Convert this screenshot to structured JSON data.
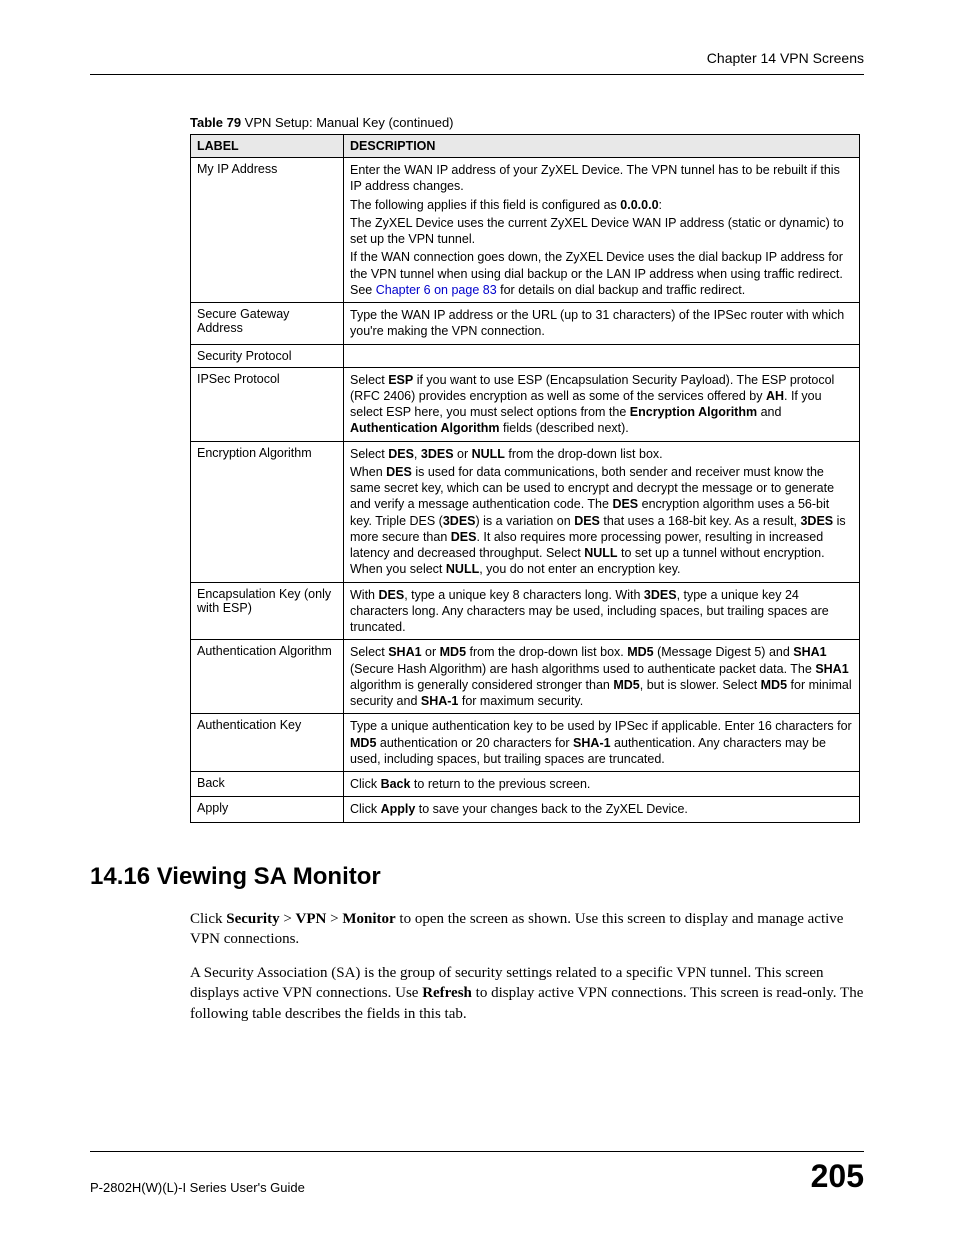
{
  "header": {
    "chapter": "Chapter 14 VPN Screens"
  },
  "table_caption": {
    "prefix": "Table 79",
    "rest": "   VPN Setup: Manual Key (continued)"
  },
  "table": {
    "headers": {
      "label": "LABEL",
      "description": "DESCRIPTION"
    },
    "rows": {
      "myip": {
        "label": "My IP Address",
        "p1": "Enter the WAN IP address of your ZyXEL Device. The VPN tunnel has to be rebuilt if this IP address changes.",
        "p2a": "The following applies if this field is configured as ",
        "p2b": "0.0.0.0",
        "p2c": ":",
        "p3": "The ZyXEL Device uses the current ZyXEL Device WAN IP address (static or dynamic) to set up the VPN tunnel.",
        "p4a": "If the WAN connection goes down, the ZyXEL Device uses the dial backup IP address for the VPN tunnel when using dial backup or the LAN IP address when using traffic redirect. See ",
        "p4link": "Chapter 6 on page 83",
        "p4b": " for details on dial backup and traffic redirect."
      },
      "sgw": {
        "label": "Secure Gateway Address",
        "p1": "Type the WAN IP address or the URL (up to 31 characters) of the IPSec router with which you're making the VPN connection."
      },
      "secproto": {
        "label": "Security Protocol",
        "p1": ""
      },
      "ipsec": {
        "label": "IPSec Protocol",
        "a": "Select ",
        "b1": "ESP",
        "c": " if you want to use ESP (Encapsulation Security Payload). The ESP protocol (RFC 2406) provides encryption as well as some of the services offered by ",
        "b2": "AH",
        "d": ". If you select ESP here, you must select options from the ",
        "b3": "Encryption Algorithm",
        "e": " and ",
        "b4": "Authentication Algorithm",
        "f": " fields (described next)."
      },
      "encalg": {
        "label": "Encryption Algorithm",
        "p1a": "Select ",
        "p1b1": "DES",
        "p1c": ", ",
        "p1b2": "3DES",
        "p1d": " or ",
        "p1b3": "NULL",
        "p1e": " from the drop-down list box.",
        "p2a": "When ",
        "p2b1": "DES",
        "p2b": " is used for data communications, both sender and receiver must know the same secret key, which can be used to encrypt and decrypt the message or to generate and verify a message authentication code. The ",
        "p2b2": "DES",
        "p2c": " encryption algorithm uses a 56-bit key. Triple DES (",
        "p2b3": "3DES",
        "p2d": ") is a variation on ",
        "p2b4": "DES",
        "p2e": " that uses a 168-bit key. As a result, ",
        "p2b5": "3DES",
        "p2f": " is more secure than ",
        "p2b6": "DES",
        "p2g": ". It also requires more processing power, resulting in increased latency and decreased throughput. Select ",
        "p2b7": "NULL",
        "p2h": " to set up a tunnel without encryption. When you select ",
        "p2b8": "NULL",
        "p2i": ", you do not enter an encryption key."
      },
      "enckey": {
        "label": "Encapsulation Key (only with ESP)",
        "a": "With ",
        "b1": "DES",
        "c": ", type a unique key 8 characters long. With ",
        "b2": "3DES",
        "d": ", type a unique key 24 characters long. Any characters may be used, including spaces, but trailing spaces are truncated."
      },
      "authalg": {
        "label": "Authentication Algorithm",
        "a": "Select ",
        "b1": "SHA1",
        "c": " or ",
        "b2": "MD5",
        "d": " from the drop-down list box. ",
        "b3": "MD5",
        "e": " (Message Digest 5) and ",
        "b4": "SHA1",
        "f": " (Secure Hash Algorithm) are hash algorithms used to authenticate packet data. The ",
        "b5": "SHA1",
        "g": " algorithm is generally considered stronger than ",
        "b6": "MD5",
        "h": ", but is slower. Select ",
        "b7": "MD5",
        "i": " for minimal security and ",
        "b8": "SHA-1",
        "j": " for maximum security."
      },
      "authkey": {
        "label": "Authentication Key",
        "a": "Type a unique authentication key to be used by IPSec if applicable. Enter 16 characters for ",
        "b1": "MD5",
        "c": " authentication or 20 characters for ",
        "b2": "SHA-1",
        "d": " authentication. Any characters may be used, including spaces, but trailing spaces are truncated."
      },
      "back": {
        "label": "Back",
        "a": "Click ",
        "b1": "Back",
        "c": " to return to the previous screen."
      },
      "apply": {
        "label": "Apply",
        "a": "Click ",
        "b1": "Apply",
        "c": " to save your changes back to the ZyXEL Device."
      }
    }
  },
  "section": {
    "heading": "14.16  Viewing SA Monitor"
  },
  "body": {
    "p1a": "Click ",
    "p1b1": "Security",
    "p1s1": " > ",
    "p1b2": "VPN",
    "p1s2": " > ",
    "p1b3": "Monitor",
    "p1c": " to open the screen as shown. Use this screen to display and manage active VPN connections.",
    "p2a": "A Security Association (SA) is the group of security settings related to a specific VPN tunnel. This screen displays active VPN connections. Use ",
    "p2b1": "Refresh",
    "p2b": " to display active VPN connections. This screen is read-only. The following table describes the fields in this tab."
  },
  "footer": {
    "guide": "P-2802H(W)(L)-I Series User's Guide",
    "page": "205"
  }
}
